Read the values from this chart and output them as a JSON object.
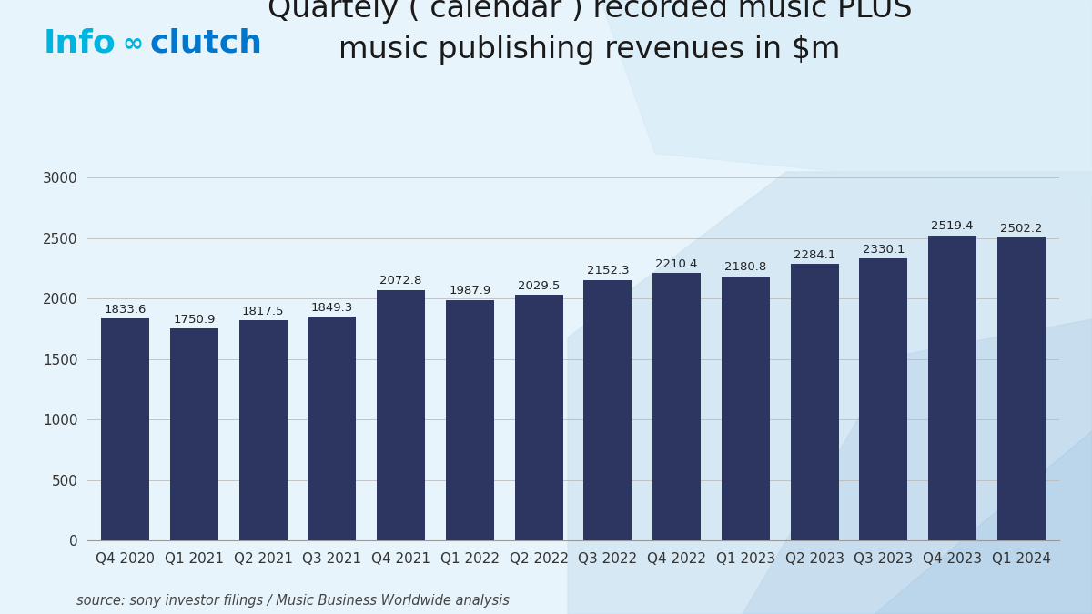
{
  "title": "Quartely ( calendar ) recorded music PLUS\nmusic publishing revenues in $m",
  "categories": [
    "Q4 2020",
    "Q1 2021",
    "Q2 2021",
    "Q3 2021",
    "Q4 2021",
    "Q1 2022",
    "Q2 2022",
    "Q3 2022",
    "Q4 2022",
    "Q1 2023",
    "Q2 2023",
    "Q3 2023",
    "Q4 2023",
    "Q1 2024"
  ],
  "values": [
    1833.6,
    1750.9,
    1817.5,
    1849.3,
    2072.8,
    1987.9,
    2029.5,
    2152.3,
    2210.4,
    2180.8,
    2284.1,
    2330.1,
    2519.4,
    2502.2
  ],
  "bar_color": "#2d3561",
  "yticks": [
    0,
    500,
    1000,
    1500,
    2000,
    2500,
    3000
  ],
  "ylim": [
    0,
    3200
  ],
  "source_text": "source: sony investor filings / Music Business Worldwide analysis",
  "bg_color": "#e8f4fb",
  "title_fontsize": 24,
  "label_fontsize": 9.5,
  "tick_fontsize": 11,
  "source_fontsize": 10.5
}
